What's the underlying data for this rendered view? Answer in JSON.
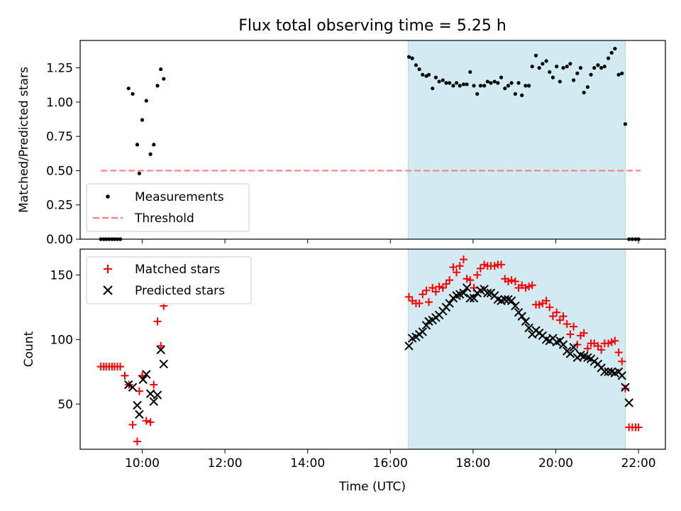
{
  "title": "Flux total observing time = 5.25 h",
  "colors": {
    "shade": "#add8e6",
    "measurement": "#000000",
    "threshold": "#ff7f7f",
    "matched": "#ff0000",
    "predicted": "#000000"
  },
  "chart_data": [
    {
      "type": "scatter",
      "ylabel": "Matched/Predicted stars",
      "xlim_hours": [
        8.5,
        22.65
      ],
      "ylim": [
        0,
        1.45
      ],
      "y_ticks": [
        "0.00",
        "0.25",
        "0.50",
        "0.75",
        "1.00",
        "1.25"
      ],
      "y_tick_values": [
        0,
        0.25,
        0.5,
        0.75,
        1.0,
        1.25
      ],
      "shaded_span_hours": [
        16.43,
        21.68
      ],
      "legend": {
        "placement": "lower-left",
        "measurements_label": "Measurements",
        "threshold_label": "Threshold"
      },
      "threshold": {
        "value": 0.5,
        "x_range_hours": [
          9.0,
          22.05
        ]
      },
      "series": [
        {
          "name": "Measurements",
          "x_hours": [
            9.0,
            9.07,
            9.13,
            9.2,
            9.27,
            9.33,
            9.4,
            9.47,
            9.67,
            9.77,
            9.88,
            9.93,
            10.0,
            10.1,
            10.2,
            10.28,
            10.37,
            10.45,
            10.52,
            16.45,
            16.53,
            16.62,
            16.7,
            16.78,
            16.87,
            16.93,
            17.02,
            17.1,
            17.18,
            17.27,
            17.35,
            17.43,
            17.52,
            17.6,
            17.68,
            17.77,
            17.85,
            17.93,
            18.02,
            18.1,
            18.18,
            18.27,
            18.35,
            18.43,
            18.52,
            18.6,
            18.68,
            18.77,
            18.85,
            18.93,
            19.02,
            19.1,
            19.18,
            19.27,
            19.35,
            19.43,
            19.52,
            19.6,
            19.68,
            19.77,
            19.85,
            19.93,
            20.02,
            20.1,
            20.18,
            20.27,
            20.35,
            20.43,
            20.52,
            20.6,
            20.68,
            20.77,
            20.85,
            20.93,
            21.02,
            21.1,
            21.18,
            21.27,
            21.35,
            21.43,
            21.52,
            21.6,
            21.68,
            21.77,
            21.85,
            21.93,
            22.0
          ],
          "y": [
            0,
            0,
            0,
            0,
            0,
            0,
            0,
            0,
            1.1,
            1.06,
            0.69,
            0.48,
            0.87,
            1.01,
            0.62,
            0.69,
            1.12,
            1.24,
            1.17,
            1.33,
            1.32,
            1.27,
            1.24,
            1.2,
            1.19,
            1.2,
            1.1,
            1.18,
            1.15,
            1.16,
            1.14,
            1.14,
            1.12,
            1.14,
            1.12,
            1.13,
            1.13,
            1.22,
            1.12,
            1.06,
            1.12,
            1.12,
            1.15,
            1.14,
            1.15,
            1.14,
            1.18,
            1.1,
            1.12,
            1.14,
            1.06,
            1.14,
            1.05,
            1.12,
            1.12,
            1.26,
            1.34,
            1.25,
            1.28,
            1.3,
            1.22,
            1.18,
            1.26,
            1.15,
            1.25,
            1.26,
            1.28,
            1.16,
            1.21,
            1.25,
            1.07,
            1.11,
            1.2,
            1.25,
            1.27,
            1.25,
            1.26,
            1.32,
            1.36,
            1.39,
            1.2,
            1.21,
            0.84,
            0,
            0,
            0,
            0
          ]
        }
      ]
    },
    {
      "type": "scatter",
      "xlabel": "Time (UTC)",
      "ylabel": "Count",
      "xlim_hours": [
        8.5,
        22.65
      ],
      "ylim": [
        15,
        170
      ],
      "x_ticks": [
        "10:00",
        "12:00",
        "14:00",
        "16:00",
        "18:00",
        "20:00",
        "22:00"
      ],
      "x_tick_hours": [
        10,
        12,
        14,
        16,
        18,
        20,
        22
      ],
      "y_ticks": [
        "50",
        "100",
        "150"
      ],
      "y_tick_values": [
        50,
        100,
        150
      ],
      "shaded_span_hours": [
        16.43,
        21.68
      ],
      "legend": {
        "placement": "upper-left",
        "matched_label": "Matched stars",
        "predicted_label": "Predicted stars"
      },
      "series": [
        {
          "name": "Matched stars",
          "marker": "plus",
          "x_hours": [
            9.0,
            9.07,
            9.13,
            9.2,
            9.27,
            9.33,
            9.4,
            9.47,
            9.58,
            9.68,
            9.77,
            9.88,
            9.93,
            10.0,
            10.1,
            10.2,
            10.28,
            10.37,
            10.45,
            10.52,
            16.45,
            16.53,
            16.62,
            16.7,
            16.78,
            16.87,
            16.93,
            17.02,
            17.1,
            17.18,
            17.27,
            17.35,
            17.43,
            17.52,
            17.6,
            17.68,
            17.77,
            17.85,
            17.93,
            18.02,
            18.1,
            18.18,
            18.27,
            18.35,
            18.43,
            18.52,
            18.6,
            18.68,
            18.77,
            18.85,
            18.93,
            19.02,
            19.1,
            19.18,
            19.27,
            19.35,
            19.43,
            19.52,
            19.6,
            19.68,
            19.77,
            19.85,
            19.93,
            20.02,
            20.1,
            20.18,
            20.27,
            20.35,
            20.43,
            20.52,
            20.6,
            20.68,
            20.77,
            20.85,
            20.93,
            21.02,
            21.1,
            21.18,
            21.27,
            21.35,
            21.43,
            21.52,
            21.6,
            21.68,
            21.77,
            21.85,
            21.93,
            22.0
          ],
          "y": [
            79,
            79,
            79,
            79,
            79,
            79,
            79,
            79,
            72,
            65,
            34,
            21,
            60,
            72,
            37,
            36,
            65,
            114,
            95,
            126,
            133,
            130,
            128,
            128,
            135,
            138,
            129,
            140,
            137,
            141,
            140,
            143,
            146,
            156,
            152,
            157,
            162,
            147,
            146,
            140,
            150,
            155,
            158,
            157,
            157,
            157,
            158,
            158,
            147,
            145,
            146,
            145,
            140,
            142,
            140,
            141,
            142,
            127,
            127,
            128,
            130,
            125,
            118,
            121,
            115,
            118,
            112,
            104,
            110,
            96,
            103,
            105,
            93,
            97,
            97,
            95,
            92,
            97,
            97,
            98,
            99,
            90,
            83,
            62,
            32,
            32,
            32,
            32
          ]
        },
        {
          "name": "Predicted stars",
          "marker": "cross",
          "x_hours": [
            9.67,
            9.77,
            9.88,
            9.93,
            10.02,
            10.1,
            10.2,
            10.28,
            10.37,
            10.45,
            10.52,
            16.45,
            16.53,
            16.62,
            16.7,
            16.78,
            16.87,
            16.93,
            17.02,
            17.1,
            17.18,
            17.27,
            17.35,
            17.43,
            17.52,
            17.6,
            17.68,
            17.77,
            17.85,
            17.93,
            18.02,
            18.1,
            18.18,
            18.27,
            18.35,
            18.43,
            18.52,
            18.6,
            18.68,
            18.77,
            18.85,
            18.93,
            19.02,
            19.1,
            19.18,
            19.27,
            19.35,
            19.43,
            19.52,
            19.6,
            19.68,
            19.77,
            19.85,
            19.93,
            20.02,
            20.1,
            20.18,
            20.27,
            20.35,
            20.43,
            20.52,
            20.6,
            20.68,
            20.77,
            20.85,
            20.93,
            21.02,
            21.1,
            21.18,
            21.27,
            21.35,
            21.43,
            21.52,
            21.6,
            21.68,
            21.77
          ],
          "y": [
            65,
            63,
            49,
            42,
            69,
            73,
            58,
            52,
            57,
            92,
            81,
            95,
            101,
            102,
            104,
            106,
            111,
            114,
            115,
            117,
            119,
            122,
            125,
            128,
            132,
            134,
            135,
            136,
            140,
            132,
            132,
            136,
            138,
            139,
            136,
            136,
            134,
            131,
            130,
            131,
            131,
            130,
            126,
            121,
            118,
            114,
            109,
            104,
            107,
            105,
            103,
            100,
            99,
            101,
            98,
            99,
            96,
            91,
            89,
            94,
            86,
            88,
            87,
            86,
            85,
            83,
            81,
            78,
            75,
            75,
            75,
            74,
            75,
            72,
            63,
            51
          ]
        }
      ]
    }
  ]
}
